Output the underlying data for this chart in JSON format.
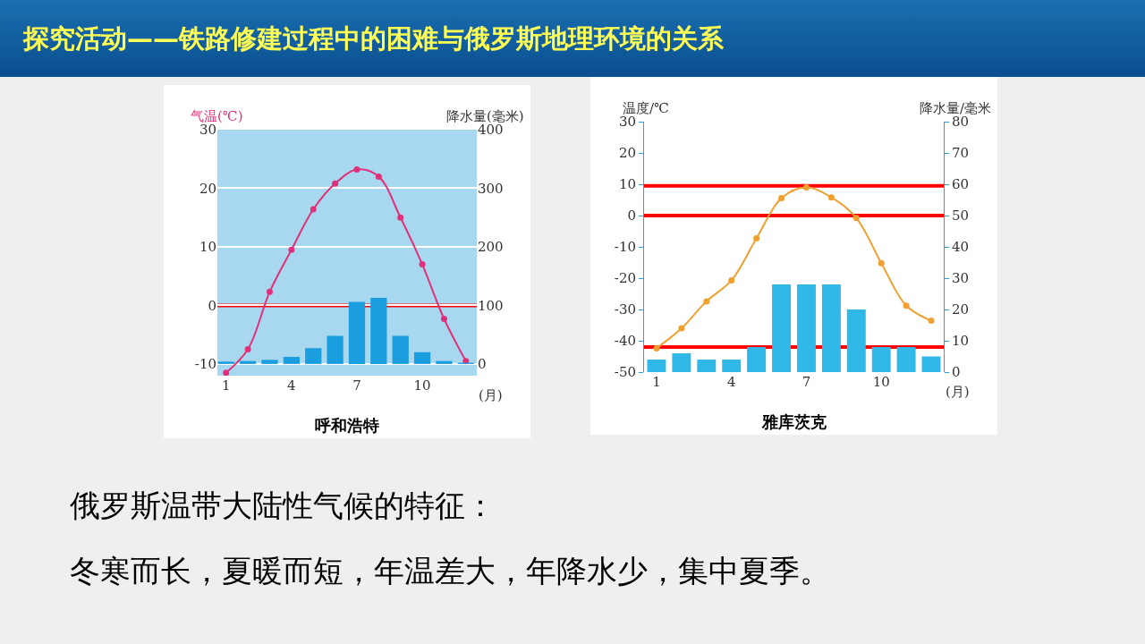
{
  "chart_data": [
    {
      "type": "bar",
      "title": "呼和浩特",
      "ylabel": "气温(℃)",
      "y2label": "降水量(毫米)",
      "xlabel": "(月)",
      "x": [
        1,
        2,
        3,
        4,
        5,
        6,
        7,
        8,
        9,
        10,
        11,
        12
      ],
      "xlim": [
        0.6,
        12.5
      ],
      "xticks": [
        1,
        4,
        7,
        10
      ],
      "ylim": [
        -12,
        30
      ],
      "yticks": [
        -10,
        0,
        10,
        20,
        30
      ],
      "y2lim": [
        -20,
        400
      ],
      "y2ticks": [
        0,
        100,
        200,
        300,
        400
      ],
      "grid": "y",
      "legend": false,
      "marker": "circle",
      "series": [
        {
          "type": "bar",
          "axis": "y2",
          "color": "#1a9ee0",
          "values": [
            4,
            5,
            7,
            12,
            27,
            48,
            106,
            113,
            48,
            20,
            5,
            2
          ]
        },
        {
          "type": "line",
          "color": "#e0307a",
          "values": [
            -11.5,
            -7.5,
            2.3,
            9.5,
            16.4,
            20.8,
            23.2,
            22,
            15,
            7,
            -2.3,
            -9.5
          ]
        }
      ],
      "ref_lines": [
        {
          "axis": "y",
          "value": 0,
          "color": "#ff0000"
        }
      ]
    },
    {
      "type": "bar",
      "title": "雅库茨克",
      "ylabel": "温度/℃",
      "y2label": "降水量/毫米",
      "xlabel": "(月)",
      "x": [
        1,
        2,
        3,
        4,
        5,
        6,
        7,
        8,
        9,
        10,
        11,
        12
      ],
      "xlim": [
        0.5,
        12.5
      ],
      "xticks": [
        1,
        4,
        7,
        10
      ],
      "ylim": [
        -50,
        30
      ],
      "yticks": [
        -50,
        -40,
        -30,
        -20,
        -10,
        0,
        10,
        20,
        30
      ],
      "y2lim": [
        0,
        80
      ],
      "y2ticks": [
        0,
        10,
        20,
        30,
        40,
        50,
        60,
        70,
        80
      ],
      "grid": false,
      "legend": false,
      "marker": "circle",
      "series": [
        {
          "type": "bar",
          "axis": "y2",
          "color": "#30b8e8",
          "values": [
            4,
            6,
            4,
            4,
            8,
            28,
            28,
            28,
            20,
            8,
            8,
            5
          ]
        },
        {
          "type": "line",
          "color": "#f0a030",
          "values": [
            -42.4,
            -36,
            -27.4,
            -20.7,
            -7.3,
            5.6,
            9,
            5.8,
            -0.8,
            -15.2,
            -28.8,
            -33.6
          ]
        }
      ],
      "ref_lines": [
        {
          "axis": "y",
          "value": 0,
          "color": "#ff0000"
        },
        {
          "axis": "y",
          "value": 9.5,
          "color": "#ff0000"
        },
        {
          "axis": "y",
          "value": -42,
          "color": "#ff0000"
        }
      ]
    },
    {
      "type": "other",
      "title": "探究活动——铁路修建过程中的困难与俄罗斯地理环境的关系",
      "annotations": [
        "俄罗斯温带大陆性气候的特征：",
        "冬寒而长，夏暖而短，年温差大，年降水少，集中夏季。"
      ]
    }
  ]
}
